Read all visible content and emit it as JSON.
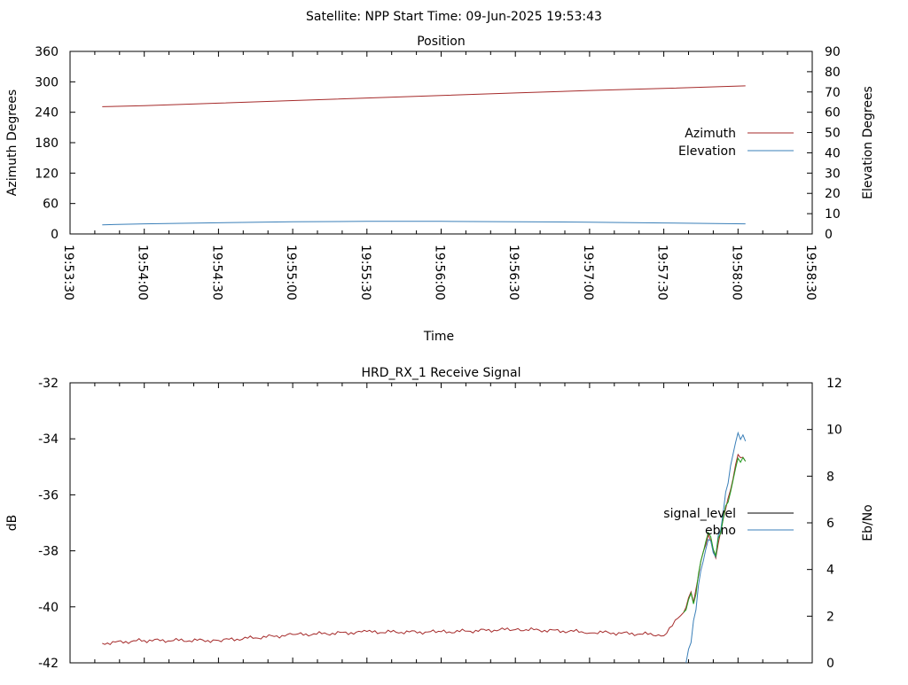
{
  "header": {
    "title": "Satellite: NPP    Start Time: 09-Jun-2025 19:53:43"
  },
  "chart_data": [
    {
      "type": "line",
      "title": "Position",
      "xlabel": "Time",
      "ylabel": "Azimuth Degrees",
      "y2label": "Elevation Degrees",
      "x_ticks": [
        "19:53:30",
        "19:54:00",
        "19:54:30",
        "19:55:00",
        "19:55:30",
        "19:56:00",
        "19:56:30",
        "19:57:00",
        "19:57:30",
        "19:58:00",
        "19:58:30"
      ],
      "xlim": [
        "19:53:30",
        "19:58:30"
      ],
      "ylim": [
        0,
        360
      ],
      "y_ticks": [
        "0",
        "60",
        "120",
        "180",
        "240",
        "300",
        "360"
      ],
      "y2lim": [
        0,
        90
      ],
      "y2_ticks": [
        "0",
        "10",
        "20",
        "30",
        "40",
        "50",
        "60",
        "70",
        "80",
        "90"
      ],
      "legend_position": "right",
      "series": [
        {
          "name": "Azimuth",
          "axis": "y",
          "color": "#a52a2a",
          "x": [
            "19:53:43",
            "19:54:00",
            "19:54:30",
            "19:55:00",
            "19:55:30",
            "19:56:00",
            "19:56:30",
            "19:57:00",
            "19:57:30",
            "19:58:03"
          ],
          "values": [
            251,
            253,
            258,
            263,
            268,
            273,
            278,
            283,
            287,
            292
          ]
        },
        {
          "name": "Elevation",
          "axis": "y2",
          "color": "#3a7fb8",
          "x": [
            "19:53:43",
            "19:54:00",
            "19:54:30",
            "19:55:00",
            "19:55:30",
            "19:56:00",
            "19:56:30",
            "19:57:00",
            "19:57:30",
            "19:58:03"
          ],
          "values": [
            4.5,
            5,
            5.5,
            6,
            6.2,
            6.2,
            6,
            5.8,
            5.4,
            5
          ]
        }
      ]
    },
    {
      "type": "line",
      "title": "HRD_RX_1 Receive Signal",
      "ylabel": "dB",
      "y2label": "Eb/No",
      "ylim": [
        -42,
        -32
      ],
      "y_ticks": [
        "-42",
        "-40",
        "-38",
        "-36",
        "-34",
        "-32"
      ],
      "y2lim": [
        0,
        12
      ],
      "y2_ticks": [
        "0",
        "2",
        "4",
        "6",
        "8",
        "10",
        "12"
      ],
      "legend_position": "right",
      "series": [
        {
          "name": "signal_level",
          "axis": "y",
          "color": "#000000"
        },
        {
          "name": "ebno",
          "axis": "y2",
          "color": "#3a7fb8"
        }
      ],
      "signal_curve": {
        "color": "#a52a2a",
        "x": [
          "19:53:43",
          "19:54:00",
          "19:54:30",
          "19:55:00",
          "19:55:30",
          "19:56:00",
          "19:56:30",
          "19:57:00",
          "19:57:30",
          "19:57:38",
          "19:57:41",
          "19:57:42",
          "19:57:45",
          "19:57:48",
          "19:57:51",
          "19:57:54",
          "19:57:57",
          "19:58:00",
          "19:58:03"
        ],
        "values": [
          -41.3,
          -41.2,
          -41.2,
          -41.0,
          -40.9,
          -40.9,
          -40.8,
          -40.9,
          -41.0,
          -40.2,
          -39.5,
          -39.9,
          -38.4,
          -37.4,
          -38.2,
          -36.8,
          -35.8,
          -34.6,
          -34.8
        ]
      },
      "ebno_curve": {
        "color": "#3a7fb8",
        "x": [
          "19:57:39",
          "19:57:40",
          "19:57:42",
          "19:57:45",
          "19:57:48",
          "19:57:51",
          "19:57:54",
          "19:57:57",
          "19:58:00",
          "19:58:03"
        ],
        "values": [
          0,
          0.6,
          1.8,
          3.9,
          5.2,
          4.5,
          6.5,
          8.6,
          10.0,
          9.5
        ]
      }
    }
  ]
}
